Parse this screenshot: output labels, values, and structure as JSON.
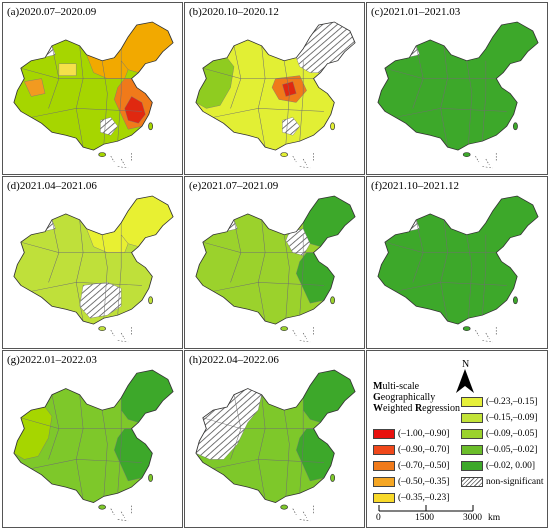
{
  "panels": [
    {
      "id": "a",
      "label": "(a)2020.07–2020.09",
      "base": "#a6d600",
      "overlays": [
        {
          "shape": "northeast",
          "color": "#f2a900"
        },
        {
          "shape": "north",
          "color": "#f2a900"
        },
        {
          "shape": "east",
          "color": "#f07a1a"
        },
        {
          "shape": "eastcore",
          "color": "#e02810"
        },
        {
          "shape": "westpatch",
          "color": "#f29a20"
        },
        {
          "shape": "midpatch",
          "color": "#f5e04a"
        },
        {
          "shape": "hatchwest",
          "color": "hatch"
        },
        {
          "shape": "hatchsouth",
          "color": "hatch"
        }
      ]
    },
    {
      "id": "b",
      "label": "(b)2020.10–2020.12",
      "base": "#e2ef34",
      "overlays": [
        {
          "shape": "westgreen",
          "color": "#8fcc20"
        },
        {
          "shape": "hatchnortheast",
          "color": "hatch"
        },
        {
          "shape": "centerhot",
          "color": "#f07a1a"
        },
        {
          "shape": "centercore",
          "color": "#e02810"
        },
        {
          "shape": "hatchsouth",
          "color": "hatch"
        }
      ]
    },
    {
      "id": "c",
      "label": "(c)2021.01–2021.03",
      "base": "#3da82a",
      "overlays": [
        {
          "shape": "hatchwest",
          "color": "hatch"
        }
      ]
    },
    {
      "id": "d",
      "label": "(d)2021.04–2021.06",
      "base": "#bfe03a",
      "overlays": [
        {
          "shape": "northeast",
          "color": "#e8f032"
        },
        {
          "shape": "north",
          "color": "#e8f032"
        },
        {
          "shape": "hatchsouthbig",
          "color": "hatch"
        },
        {
          "shape": "hatchwest",
          "color": "hatch"
        }
      ]
    },
    {
      "id": "e",
      "label": "(e)2021.07–2021.09",
      "base": "#9bd22c",
      "overlays": [
        {
          "shape": "northeast",
          "color": "#3da82a"
        },
        {
          "shape": "east",
          "color": "#3da82a"
        },
        {
          "shape": "hatchnorthmid",
          "color": "hatch"
        },
        {
          "shape": "hatchwest",
          "color": "hatch"
        }
      ]
    },
    {
      "id": "f",
      "label": "(f)2021.10–2021.12",
      "base": "#3da82a",
      "overlays": [
        {
          "shape": "hatchwest",
          "color": "hatch"
        }
      ]
    },
    {
      "id": "g",
      "label": "(g)2022.01–2022.03",
      "base": "#7ec82a",
      "overlays": [
        {
          "shape": "northeast",
          "color": "#3da82a"
        },
        {
          "shape": "east",
          "color": "#3da82a"
        },
        {
          "shape": "westgreen",
          "color": "#a6d600"
        }
      ]
    },
    {
      "id": "h",
      "label": "(h)2022.04–2022.06",
      "base": "#7ec82a",
      "overlays": [
        {
          "shape": "westhatchbig",
          "color": "hatch"
        },
        {
          "shape": "northeast",
          "color": "#3da82a"
        },
        {
          "shape": "east",
          "color": "#3da82a"
        }
      ]
    }
  ],
  "legend": {
    "title_lines": [
      {
        "bold": "M",
        "rest": "ulti-scale"
      },
      {
        "bold": "G",
        "rest": "eographically"
      },
      {
        "bold": "W",
        "rest": "eighted "
      },
      {
        "bold": "R",
        "rest": "egression"
      }
    ],
    "left_items": [
      {
        "label": "(–1.00,–0.90]",
        "color": "#e8100e"
      },
      {
        "label": "(–0.90,–0.70]",
        "color": "#f0481a"
      },
      {
        "label": "(–0.70,–0.50]",
        "color": "#f07a1a"
      },
      {
        "label": "(–0.50,–0.35]",
        "color": "#f5a623"
      },
      {
        "label": "(–0.35,–0.23]",
        "color": "#f8d92a"
      }
    ],
    "right_items": [
      {
        "label": "(–0.23,–0.15]",
        "color": "#e6f03a"
      },
      {
        "label": "(–0.15,–0.09]",
        "color": "#c2e338"
      },
      {
        "label": "(–0.09,–0.05]",
        "color": "#9bd22c"
      },
      {
        "label": "(–0.05,–0.02]",
        "color": "#6bbd2a"
      },
      {
        "label": "(–0.02, 0.00]",
        "color": "#3da82a"
      },
      {
        "label": "non-significant",
        "color": "hatch"
      }
    ],
    "north_label": "N",
    "scale": {
      "ticks": [
        "0",
        "1500",
        "3000"
      ],
      "unit": "km"
    }
  }
}
